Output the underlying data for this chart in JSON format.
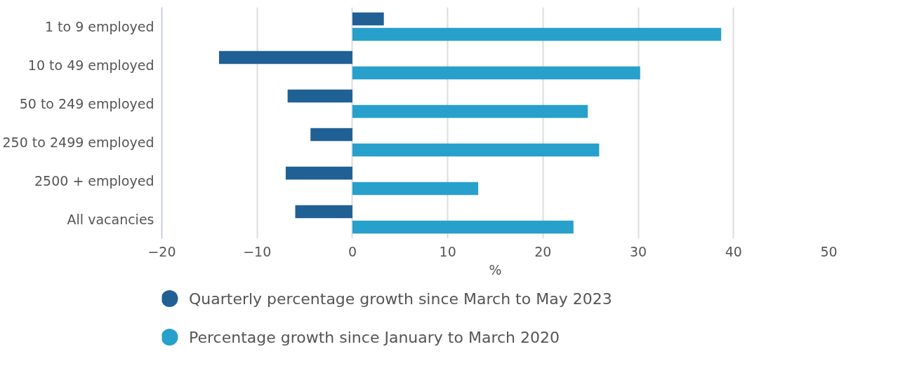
{
  "chart_data": {
    "type": "bar",
    "orientation": "horizontal",
    "xlabel": "%",
    "categories": [
      "1 to 9 employed",
      "10 to 49 employed",
      "50 to 249 employed",
      "250 to 2499 employed",
      "2500 + employed",
      "All vacancies"
    ],
    "series": [
      {
        "name": "Quarterly percentage growth since March to May 2023",
        "color": "#206095",
        "values": [
          3.3,
          -14.0,
          -6.8,
          -4.4,
          -7.0,
          -6.0
        ]
      },
      {
        "name": "Percentage growth since January to March 2020",
        "color": "#27a0cc",
        "values": [
          38.7,
          30.2,
          24.7,
          25.9,
          13.2,
          23.2
        ]
      }
    ],
    "xlim": [
      -20,
      50
    ],
    "xticks": [
      -20,
      -10,
      0,
      10,
      20,
      30,
      40,
      50
    ],
    "grid": "x",
    "legend": "bottom"
  }
}
